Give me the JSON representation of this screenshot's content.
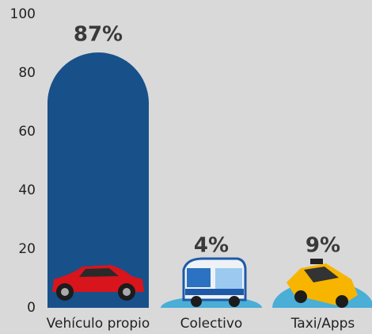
{
  "chart_data": {
    "type": "bar",
    "categories": [
      "Vehículo propio",
      "Colectivo",
      "Taxi/Apps"
    ],
    "values": [
      87,
      4,
      9
    ],
    "value_labels": [
      "87%",
      "4%",
      "9%"
    ],
    "colors": [
      "#18508a",
      "#4aaed6",
      "#4aaed6"
    ],
    "ylim": [
      0,
      100
    ],
    "yticks": [
      0,
      20,
      40,
      60,
      80,
      100
    ],
    "grid": false
  }
}
